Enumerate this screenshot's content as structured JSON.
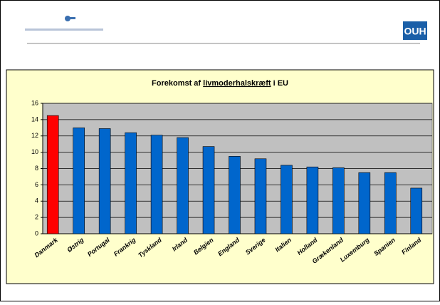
{
  "logo_text": "OUH",
  "chart_data": {
    "type": "bar",
    "title_parts": [
      "Forekomst af ",
      "livmoderhalskræft",
      " i EU"
    ],
    "categories": [
      "Danmark",
      "Østrig",
      "Portugal",
      "Frankrig",
      "Tyskland",
      "Irland",
      "Belgien",
      "England",
      "Sverige",
      "Italien",
      "Holland",
      "Grækenland",
      "Luxemburg",
      "Spanien",
      "Finland"
    ],
    "values": [
      14.5,
      13,
      12.9,
      12.4,
      12.1,
      11.8,
      10.7,
      9.5,
      9.2,
      8.4,
      8.2,
      8.1,
      7.5,
      7.5,
      5.6
    ],
    "colors": [
      "#ff0000",
      "#0066cc",
      "#0066cc",
      "#0066cc",
      "#0066cc",
      "#0066cc",
      "#0066cc",
      "#0066cc",
      "#0066cc",
      "#0066cc",
      "#0066cc",
      "#0066cc",
      "#0066cc",
      "#0066cc",
      "#0066cc"
    ],
    "ylim": [
      0,
      16
    ],
    "yticks": [
      0,
      2,
      4,
      6,
      8,
      10,
      12,
      14,
      16
    ],
    "grid": true
  }
}
